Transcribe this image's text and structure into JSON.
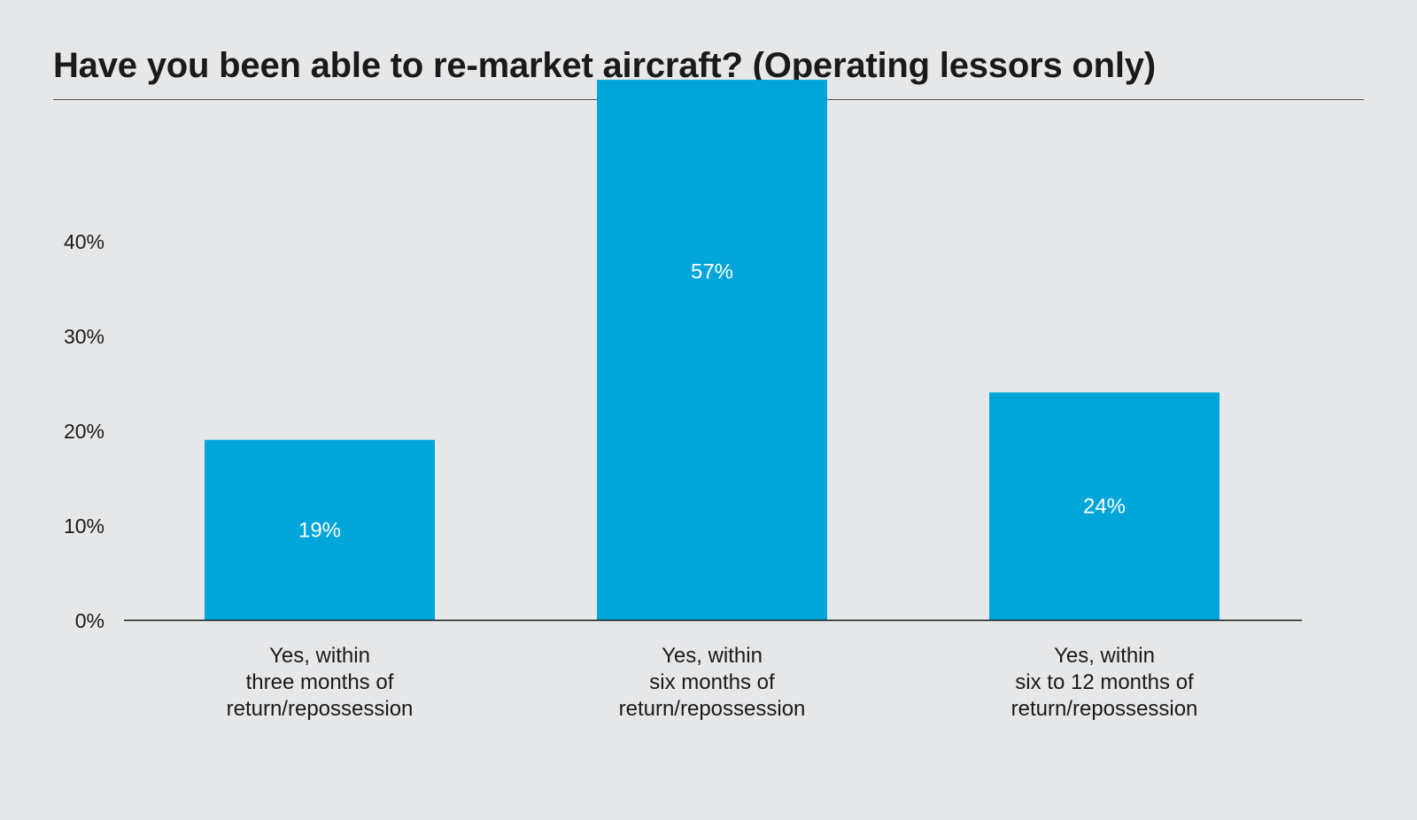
{
  "chart_data": {
    "type": "bar",
    "title": "Have you been able to re-market aircraft? (Operating lessors only)",
    "categories": [
      [
        "Yes, within",
        "three months of",
        "return/repossession"
      ],
      [
        "Yes, within",
        "six months of",
        "return/repossession"
      ],
      [
        "Yes, within",
        "six to 12 months of",
        "return/repossession"
      ]
    ],
    "values": [
      19,
      57,
      24
    ],
    "value_labels": [
      "19%",
      "57%",
      "24%"
    ],
    "yticks": [
      0,
      10,
      20,
      30,
      40
    ],
    "ytick_labels": [
      "0%",
      "10%",
      "20%",
      "30%",
      "40%"
    ],
    "xlabel": "",
    "ylabel": "",
    "ylim": [
      0,
      40
    ],
    "bar_color": "#00a6d9",
    "grid": false
  }
}
